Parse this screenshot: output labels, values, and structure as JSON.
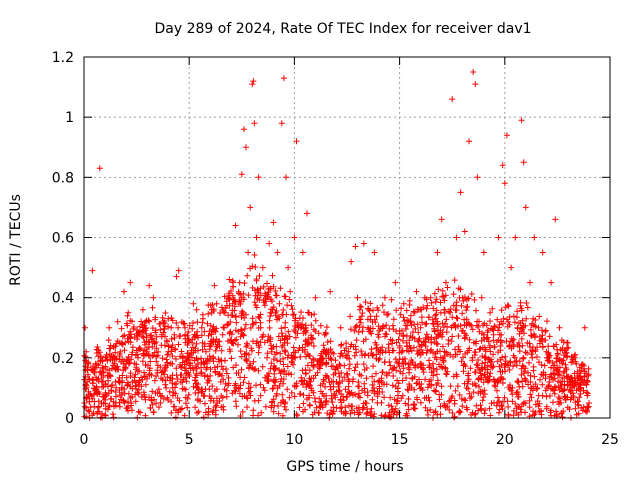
{
  "chart_data": {
    "type": "scatter",
    "title": "Day 289 of 2024, Rate Of TEC Index for receiver dav1",
    "xlabel": "GPS time / hours",
    "ylabel": "ROTI / TECUs",
    "xlim": [
      0,
      25
    ],
    "ylim": [
      0,
      1.2
    ],
    "xticks": [
      0,
      5,
      10,
      15,
      20,
      25
    ],
    "xtick_labels": [
      "0",
      "5",
      "10",
      "15",
      "20",
      "25"
    ],
    "yticks": [
      0,
      0.2,
      0.4,
      0.6,
      0.8,
      1,
      1.2
    ],
    "ytick_labels": [
      "0",
      "0.2",
      "0.4",
      "0.6",
      "0.8",
      "1",
      "1.2"
    ],
    "grid": true,
    "marker": "+",
    "marker_color": "#ff0000",
    "series": [
      {
        "name": "ROTI",
        "color": "#ff0000",
        "points": [
          [
            0.02,
            0.05
          ],
          [
            0.05,
            0.3
          ],
          [
            0.1,
            0.22
          ],
          [
            0.15,
            0.12
          ],
          [
            0.2,
            0.18
          ],
          [
            0.3,
            0.08
          ],
          [
            0.4,
            0.49
          ],
          [
            0.5,
            0.15
          ],
          [
            0.6,
            0.1
          ],
          [
            0.75,
            0.83
          ],
          [
            0.8,
            0.2
          ],
          [
            0.9,
            0.12
          ],
          [
            1.0,
            0.06
          ],
          [
            1.1,
            0.16
          ],
          [
            1.2,
            0.3
          ],
          [
            1.3,
            0.09
          ],
          [
            1.4,
            0.2
          ],
          [
            1.5,
            0.12
          ],
          [
            1.6,
            0.32
          ],
          [
            1.7,
            0.25
          ],
          [
            1.8,
            0.1
          ],
          [
            1.9,
            0.42
          ],
          [
            2.0,
            0.18
          ],
          [
            2.1,
            0.35
          ],
          [
            2.2,
            0.45
          ],
          [
            2.3,
            0.12
          ],
          [
            2.5,
            0.28
          ],
          [
            2.6,
            0.08
          ],
          [
            2.8,
            0.36
          ],
          [
            3.0,
            0.22
          ],
          [
            3.1,
            0.44
          ],
          [
            3.2,
            0.06
          ],
          [
            3.3,
            0.4
          ],
          [
            3.5,
            0.15
          ],
          [
            3.7,
            0.27
          ],
          [
            3.9,
            0.1
          ],
          [
            4.0,
            0.33
          ],
          [
            4.2,
            0.18
          ],
          [
            4.4,
            0.47
          ],
          [
            4.5,
            0.49
          ],
          [
            4.6,
            0.12
          ],
          [
            4.8,
            0.3
          ],
          [
            5.0,
            0.2
          ],
          [
            5.2,
            0.38
          ],
          [
            5.4,
            0.1
          ],
          [
            5.6,
            0.3
          ],
          [
            5.8,
            0.22
          ],
          [
            6.0,
            0.14
          ],
          [
            6.2,
            0.44
          ],
          [
            6.3,
            0.38
          ],
          [
            6.5,
            0.12
          ],
          [
            6.7,
            0.35
          ],
          [
            6.9,
            0.4
          ],
          [
            7.0,
            0.26
          ],
          [
            7.2,
            0.64
          ],
          [
            7.4,
            0.45
          ],
          [
            7.5,
            0.81
          ],
          [
            7.6,
            0.96
          ],
          [
            7.7,
            0.9
          ],
          [
            7.8,
            0.55
          ],
          [
            7.9,
            0.7
          ],
          [
            8.0,
            1.11
          ],
          [
            8.05,
            1.12
          ],
          [
            8.1,
            0.98
          ],
          [
            8.2,
            0.6
          ],
          [
            8.3,
            0.8
          ],
          [
            8.4,
            0.3
          ],
          [
            8.5,
            0.5
          ],
          [
            8.7,
            0.2
          ],
          [
            8.8,
            0.58
          ],
          [
            9.0,
            0.65
          ],
          [
            9.1,
            0.35
          ],
          [
            9.2,
            0.55
          ],
          [
            9.4,
            0.98
          ],
          [
            9.5,
            1.13
          ],
          [
            9.6,
            0.8
          ],
          [
            9.7,
            0.5
          ],
          [
            9.8,
            0.42
          ],
          [
            10.0,
            0.6
          ],
          [
            10.1,
            0.92
          ],
          [
            10.2,
            0.3
          ],
          [
            10.4,
            0.55
          ],
          [
            10.6,
            0.68
          ],
          [
            10.8,
            0.25
          ],
          [
            11.0,
            0.4
          ],
          [
            11.2,
            0.18
          ],
          [
            11.5,
            0.28
          ],
          [
            11.7,
            0.42
          ],
          [
            12.0,
            0.12
          ],
          [
            12.2,
            0.3
          ],
          [
            12.5,
            0.2
          ],
          [
            12.7,
            0.52
          ],
          [
            12.9,
            0.57
          ],
          [
            13.0,
            0.4
          ],
          [
            13.3,
            0.58
          ],
          [
            13.5,
            0.3
          ],
          [
            13.8,
            0.55
          ],
          [
            14.0,
            0.22
          ],
          [
            14.3,
            0.4
          ],
          [
            14.5,
            0.15
          ],
          [
            14.8,
            0.45
          ],
          [
            15.0,
            0.28
          ],
          [
            15.2,
            0.38
          ],
          [
            15.5,
            0.18
          ],
          [
            15.8,
            0.42
          ],
          [
            16.0,
            0.3
          ],
          [
            16.2,
            0.4
          ],
          [
            16.5,
            0.25
          ],
          [
            16.8,
            0.55
          ],
          [
            17.0,
            0.66
          ],
          [
            17.2,
            0.45
          ],
          [
            17.4,
            0.35
          ],
          [
            17.5,
            1.06
          ],
          [
            17.7,
            0.6
          ],
          [
            17.9,
            0.75
          ],
          [
            18.0,
            0.4
          ],
          [
            18.1,
            0.62
          ],
          [
            18.3,
            0.92
          ],
          [
            18.5,
            1.15
          ],
          [
            18.6,
            1.11
          ],
          [
            18.7,
            0.8
          ],
          [
            18.9,
            0.4
          ],
          [
            19.0,
            0.55
          ],
          [
            19.1,
            0.2
          ],
          [
            19.3,
            0.35
          ],
          [
            19.5,
            0.12
          ],
          [
            19.7,
            0.6
          ],
          [
            19.9,
            0.84
          ],
          [
            20.0,
            0.78
          ],
          [
            20.1,
            0.94
          ],
          [
            20.3,
            0.5
          ],
          [
            20.5,
            0.6
          ],
          [
            20.6,
            0.3
          ],
          [
            20.8,
            0.99
          ],
          [
            20.9,
            0.85
          ],
          [
            21.0,
            0.7
          ],
          [
            21.2,
            0.45
          ],
          [
            21.4,
            0.6
          ],
          [
            21.6,
            0.3
          ],
          [
            21.8,
            0.55
          ],
          [
            22.0,
            0.2
          ],
          [
            22.2,
            0.45
          ],
          [
            22.4,
            0.66
          ],
          [
            22.6,
            0.3
          ],
          [
            22.8,
            0.15
          ],
          [
            23.0,
            0.25
          ],
          [
            23.2,
            0.1
          ],
          [
            23.4,
            0.18
          ],
          [
            23.6,
            0.08
          ],
          [
            23.8,
            0.3
          ],
          [
            23.9,
            0.12
          ],
          [
            24.0,
            0.05
          ]
        ]
      }
    ],
    "density_band": {
      "description": "dense band of points across all hours",
      "lower": 0.0,
      "upper_by_hour": [
        [
          0,
          0.2
        ],
        [
          1,
          0.22
        ],
        [
          2,
          0.3
        ],
        [
          3,
          0.32
        ],
        [
          4,
          0.3
        ],
        [
          5,
          0.3
        ],
        [
          6,
          0.33
        ],
        [
          7,
          0.4
        ],
        [
          8,
          0.5
        ],
        [
          9,
          0.42
        ],
        [
          10,
          0.35
        ],
        [
          11,
          0.3
        ],
        [
          12,
          0.22
        ],
        [
          13,
          0.33
        ],
        [
          14,
          0.35
        ],
        [
          15,
          0.33
        ],
        [
          16,
          0.35
        ],
        [
          17,
          0.38
        ],
        [
          18,
          0.42
        ],
        [
          19,
          0.3
        ],
        [
          20,
          0.33
        ],
        [
          21,
          0.35
        ],
        [
          22,
          0.28
        ],
        [
          23,
          0.22
        ],
        [
          24,
          0.15
        ]
      ]
    }
  }
}
